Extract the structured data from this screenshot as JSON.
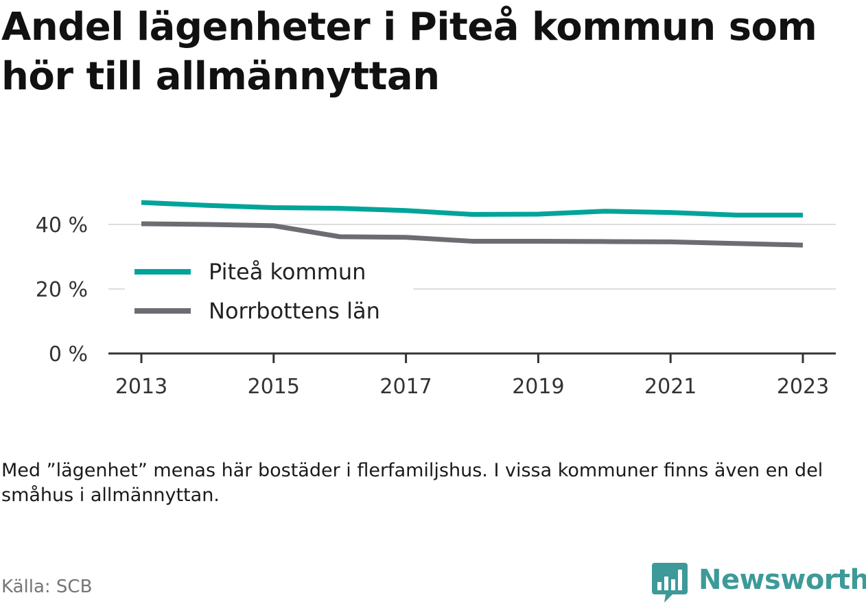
{
  "title": "Andel lägenheter i Piteå kommun som hör till allmännyttan",
  "note": "Med ”lägenhet” menas här bostäder i flerfamiljshus. I vissa kommuner finns även en del småhus i allmännyttan.",
  "source": "Källa: SCB",
  "brand": {
    "name": "Newsworthy",
    "icon": "bar-chart-speech-bubble-icon",
    "color": "#3d9a98"
  },
  "chart_data": {
    "type": "line",
    "x": [
      2013,
      2014,
      2015,
      2016,
      2017,
      2018,
      2019,
      2020,
      2021,
      2022,
      2023
    ],
    "x_ticks": [
      "2013",
      "2015",
      "2017",
      "2019",
      "2021",
      "2023"
    ],
    "y_ticks": [
      "0 %",
      "20 %",
      "40 %"
    ],
    "ylim": [
      0,
      50
    ],
    "grid": true,
    "legend_placement": "center-left",
    "series": [
      {
        "name": "Piteå kommun",
        "color": "#00a49a",
        "values": [
          46.8,
          45.9,
          45.2,
          45.0,
          44.3,
          43.1,
          43.2,
          44.1,
          43.7,
          42.9,
          42.9
        ]
      },
      {
        "name": "Norrbottens län",
        "color": "#6d6c72",
        "values": [
          40.2,
          40.0,
          39.6,
          36.2,
          36.0,
          34.8,
          34.8,
          34.7,
          34.6,
          34.1,
          33.6
        ]
      }
    ]
  }
}
